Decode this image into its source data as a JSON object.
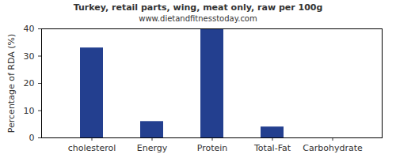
{
  "chart_data": {
    "type": "bar",
    "title": "Turkey, retail parts, wing, meat only, raw per 100g",
    "subtitle": "www.dietandfitnesstoday.com",
    "y_label": "Percentage of RDA (%)",
    "categories": [
      "cholesterol",
      "Energy",
      "Protein",
      "Total-Fat",
      "Carbohydrate"
    ],
    "values": [
      33,
      6,
      40,
      4,
      0
    ],
    "color": "#233f8f",
    "ylim": [
      0,
      40
    ],
    "yticks": [
      0,
      10,
      20,
      30,
      40
    ],
    "grid": false
  }
}
